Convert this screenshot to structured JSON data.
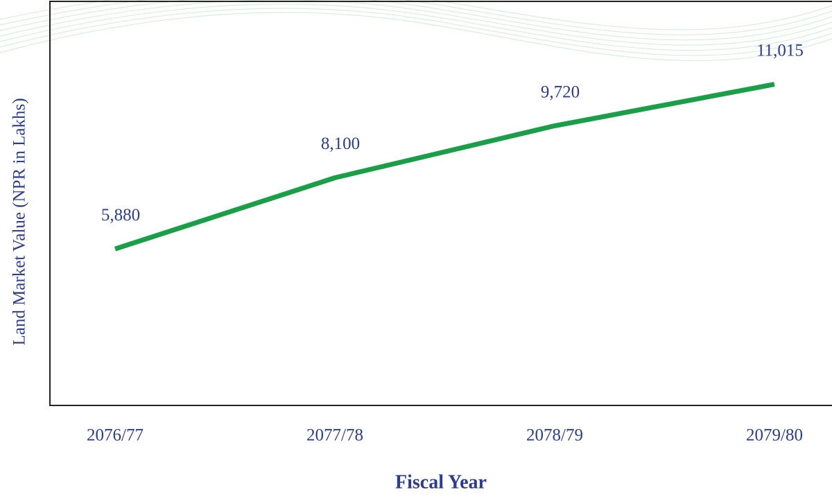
{
  "chart_data": {
    "type": "line",
    "x_label": "Fiscal Year",
    "y_label": "Land Market Value (NPR in Lakhs)",
    "categories": [
      "2076/77",
      "2077/78",
      "2078/79",
      "2079/80"
    ],
    "values": [
      5880,
      8100,
      9720,
      11015
    ],
    "value_labels": [
      "5,880",
      "8,100",
      "9,720",
      "11,015"
    ],
    "color": "#1a9e48",
    "ylim": [
      1000,
      13600
    ]
  }
}
